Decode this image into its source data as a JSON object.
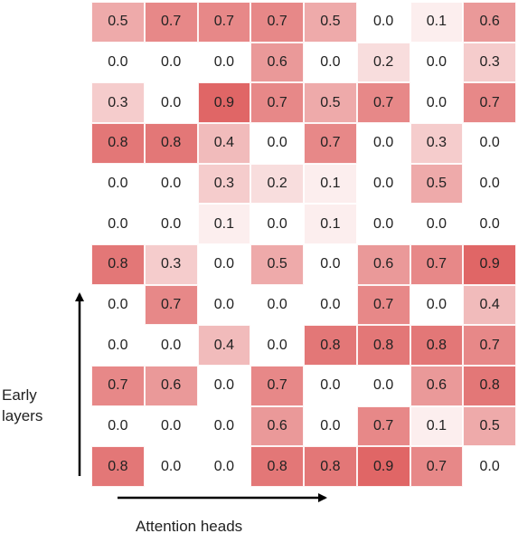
{
  "chart_data": {
    "type": "heatmap",
    "xlabel": "Attention heads",
    "ylabel_lines": [
      "Early",
      "layers"
    ],
    "rows": 12,
    "cols": 8,
    "values": [
      [
        0.5,
        0.7,
        0.7,
        0.7,
        0.5,
        0.0,
        0.1,
        0.6
      ],
      [
        0.0,
        0.0,
        0.0,
        0.6,
        0.0,
        0.2,
        0.0,
        0.3
      ],
      [
        0.3,
        0.0,
        0.9,
        0.7,
        0.5,
        0.7,
        0.0,
        0.7
      ],
      [
        0.8,
        0.8,
        0.4,
        0.0,
        0.7,
        0.0,
        0.3,
        0.0
      ],
      [
        0.0,
        0.0,
        0.3,
        0.2,
        0.1,
        0.0,
        0.5,
        0.0
      ],
      [
        0.0,
        0.0,
        0.1,
        0.0,
        0.1,
        0.0,
        0.0,
        0.0
      ],
      [
        0.8,
        0.3,
        0.0,
        0.5,
        0.0,
        0.6,
        0.7,
        0.9
      ],
      [
        0.0,
        0.7,
        0.0,
        0.0,
        0.0,
        0.7,
        0.0,
        0.4
      ],
      [
        0.0,
        0.0,
        0.4,
        0.0,
        0.8,
        0.8,
        0.8,
        0.7
      ],
      [
        0.7,
        0.6,
        0.0,
        0.7,
        0.0,
        0.0,
        0.6,
        0.8
      ],
      [
        0.0,
        0.0,
        0.0,
        0.6,
        0.0,
        0.7,
        0.1,
        0.5
      ],
      [
        0.8,
        0.0,
        0.0,
        0.8,
        0.8,
        0.9,
        0.7,
        0.0
      ]
    ],
    "colormap": {
      "low": "#ffffff",
      "high": "#e06666"
    },
    "vmin": 0.0,
    "vmax": 0.9
  },
  "colors": {
    "arrow": "#000000",
    "text": "#222222"
  }
}
